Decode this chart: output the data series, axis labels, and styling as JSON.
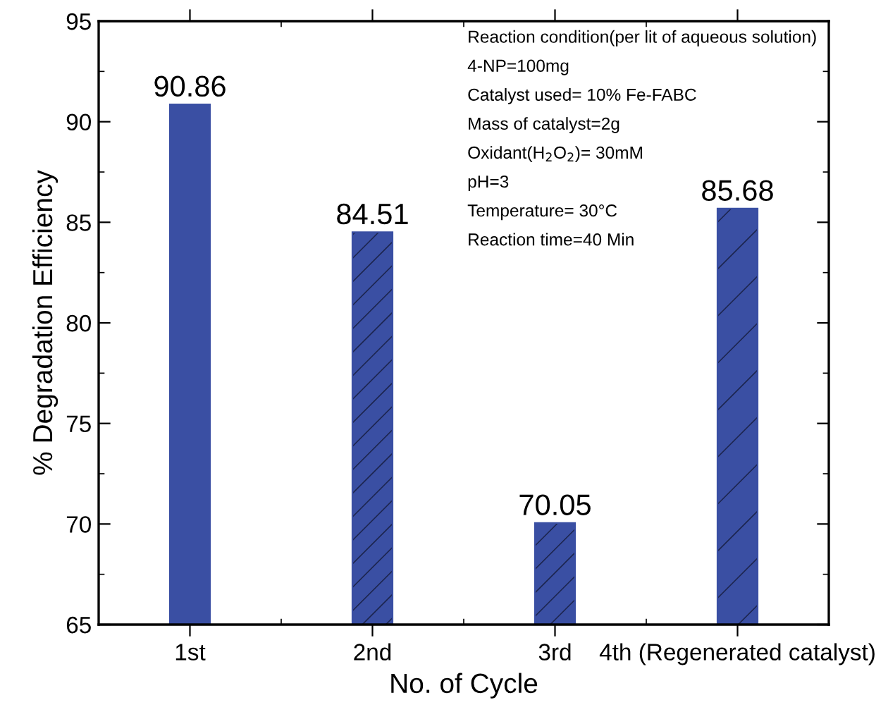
{
  "chart_data": {
    "type": "bar",
    "xlabel": "No. of Cycle",
    "ylabel": "% Degradation Efficiency",
    "categories": [
      "1st",
      "2nd",
      "3rd",
      "4th (Regenerated catalyst)"
    ],
    "values": [
      90.86,
      84.51,
      70.05,
      85.68
    ],
    "color": "#3a4fa3",
    "ylim": [
      65,
      95
    ],
    "yticks": [
      65,
      70,
      75,
      80,
      85,
      90,
      95
    ],
    "grid": false,
    "data_labels": true,
    "annotations": [
      "Reaction condition(per lit of aqueous solution)",
      "4-NP=100mg",
      "Catalyst used= 10% Fe-FABC",
      "Mass of catalyst=2g",
      "Oxidant(H$_{2}$O$_{2}$)= 30mM",
      "pH=3",
      "Temperature= 30°C",
      "Reaction time=40 Min"
    ]
  }
}
